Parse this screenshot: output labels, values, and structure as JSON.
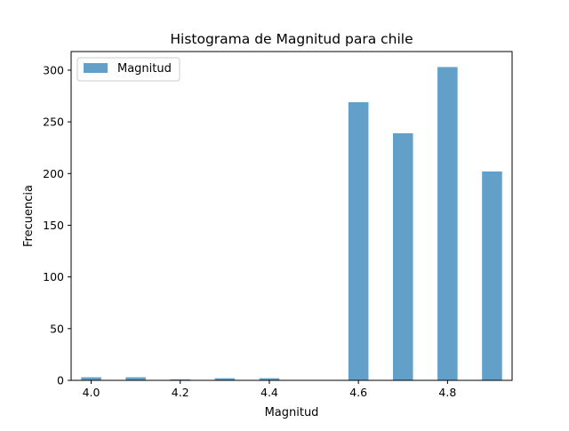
{
  "chart_data": {
    "type": "bar",
    "title": "Histograma de Magnitud para chile",
    "xlabel": "Magnitud",
    "ylabel": "Frecuencia",
    "xlim": [
      3.955,
      4.945
    ],
    "ylim": [
      0,
      318
    ],
    "xticks": [
      4.0,
      4.2,
      4.4,
      4.6,
      4.8
    ],
    "xtick_labels": [
      "4.0",
      "4.2",
      "4.4",
      "4.6",
      "4.8"
    ],
    "yticks": [
      0,
      50,
      100,
      150,
      200,
      250,
      300
    ],
    "ytick_labels": [
      "0",
      "50",
      "100",
      "150",
      "200",
      "250",
      "300"
    ],
    "bar_width": 0.045,
    "legend_position": "upper left",
    "color": "#1f77b4",
    "alpha": 0.7,
    "series": [
      {
        "name": "Magnitud",
        "x": [
          4.0,
          4.1,
          4.2,
          4.3,
          4.4,
          4.5,
          4.6,
          4.7,
          4.8,
          4.9
        ],
        "values": [
          3,
          3,
          1,
          2,
          2,
          0,
          269,
          239,
          303,
          202
        ]
      }
    ]
  }
}
